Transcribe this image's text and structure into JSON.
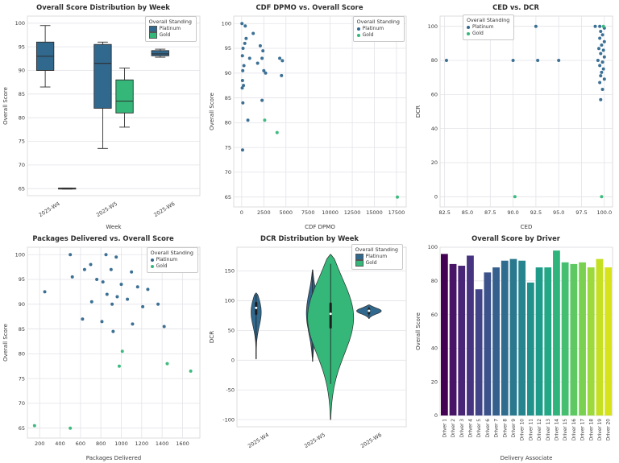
{
  "colors": {
    "platinum": "#31688e",
    "gold": "#35b779",
    "grid": "#e3e3e9",
    "axis_text": "#3a3a3a",
    "border": "#d6d6d6",
    "box_edge": "#2e2e2e"
  },
  "legend_title": "Overall Standing",
  "chart_data": [
    {
      "id": "box-week",
      "type": "box",
      "title": "Overall Score Distribution by Week",
      "xlabel": "Week",
      "ylabel": "Overall Score",
      "categories": [
        "2025-W4",
        "2025-W5",
        "2025-W6"
      ],
      "ylim": [
        63.5,
        101.5
      ],
      "yticks": [
        65,
        70,
        75,
        80,
        85,
        90,
        95,
        100
      ],
      "rot_xticks": true,
      "legend": {
        "title": "Overall Standing",
        "marker": "square",
        "pos": {
          "right": 12,
          "top": 20
        },
        "entries": [
          {
            "label": "Platinum",
            "color_key": "platinum"
          },
          {
            "label": "Gold",
            "color_key": "gold"
          }
        ]
      },
      "boxes": [
        {
          "cat": 0,
          "group": "platinum",
          "lo": 86.5,
          "q1": 90,
          "med": 93,
          "q3": 96,
          "hi": 99.5
        },
        {
          "cat": 0,
          "group": "gold",
          "lo": 64.9,
          "q1": 64.9,
          "med": 65,
          "q3": 65.1,
          "hi": 65.1
        },
        {
          "cat": 1,
          "group": "platinum",
          "lo": 73.5,
          "q1": 82,
          "med": 91.5,
          "q3": 95.5,
          "hi": 96
        },
        {
          "cat": 1,
          "group": "gold",
          "lo": 78,
          "q1": 81,
          "med": 83.5,
          "q3": 88,
          "hi": 90.5
        },
        {
          "cat": 2,
          "group": "platinum",
          "lo": 92.8,
          "q1": 93.1,
          "med": 93.5,
          "q3": 94.2,
          "hi": 94.5
        }
      ]
    },
    {
      "id": "dpmo-score",
      "type": "scatter",
      "title": "CDF DPMO vs. Overall Score",
      "xlabel": "CDF DPMO",
      "ylabel": "Overall Score",
      "xlim": [
        -900,
        18600
      ],
      "xticks": [
        0,
        2500,
        5000,
        7500,
        10000,
        12500,
        15000,
        17500
      ],
      "ylim": [
        63,
        101.5
      ],
      "yticks": [
        65,
        70,
        75,
        80,
        85,
        90,
        95,
        100
      ],
      "legend": {
        "title": "Overall Standing",
        "marker": "dot",
        "pos": {
          "right": 10,
          "top": 20
        },
        "entries": [
          {
            "label": "Platinum",
            "color_key": "platinum"
          },
          {
            "label": "Gold",
            "color_key": "gold"
          }
        ]
      },
      "series": [
        {
          "name": "Platinum",
          "color_key": "platinum",
          "points": [
            [
              30,
              100
            ],
            [
              400,
              99.5
            ],
            [
              1300,
              98
            ],
            [
              500,
              97
            ],
            [
              350,
              96
            ],
            [
              2100,
              95.5
            ],
            [
              150,
              95
            ],
            [
              2400,
              94.5
            ],
            [
              80,
              93.5
            ],
            [
              900,
              93
            ],
            [
              2300,
              93
            ],
            [
              4300,
              93
            ],
            [
              1800,
              92
            ],
            [
              4600,
              92.5
            ],
            [
              250,
              91.5
            ],
            [
              120,
              90.5
            ],
            [
              2500,
              90.5
            ],
            [
              2700,
              90
            ],
            [
              4500,
              89.5
            ],
            [
              90,
              88.5
            ],
            [
              200,
              87.5
            ],
            [
              60,
              87
            ],
            [
              2300,
              84.5
            ],
            [
              130,
              84
            ],
            [
              700,
              80.5
            ],
            [
              100,
              74.5
            ]
          ]
        },
        {
          "name": "Gold",
          "color_key": "gold",
          "points": [
            [
              2600,
              80.5
            ],
            [
              4000,
              78
            ],
            [
              17600,
              65
            ]
          ]
        }
      ]
    },
    {
      "id": "ced-dcr",
      "type": "scatter",
      "title": "CED vs. DCR",
      "xlabel": "CED",
      "ylabel": "DCR",
      "xlim": [
        82.0,
        100.9
      ],
      "xticks": [
        82.5,
        85.0,
        87.5,
        90.0,
        92.5,
        95.0,
        97.5,
        100.0
      ],
      "xtick_labels": [
        "82.5",
        "85.0",
        "87.5",
        "90.0",
        "92.5",
        "95.0",
        "97.5",
        "100.0"
      ],
      "ylim": [
        -6,
        106
      ],
      "yticks": [
        0,
        20,
        40,
        60,
        80,
        100
      ],
      "legend": {
        "title": "Overall Standing",
        "marker": "dot",
        "pos": {
          "left": 62,
          "top": 18
        },
        "entries": [
          {
            "label": "Platinum",
            "color_key": "platinum"
          },
          {
            "label": "Gold",
            "color_key": "gold"
          }
        ]
      },
      "series": [
        {
          "name": "Platinum",
          "color_key": "platinum",
          "points": [
            [
              82.7,
              80
            ],
            [
              90.0,
              80
            ],
            [
              92.5,
              100
            ],
            [
              92.7,
              80
            ],
            [
              95.0,
              80
            ],
            [
              99.0,
              100
            ],
            [
              99.5,
              100
            ],
            [
              100,
              99
            ],
            [
              99.6,
              97
            ],
            [
              99.8,
              95
            ],
            [
              99.5,
              93
            ],
            [
              100,
              91
            ],
            [
              99.7,
              89
            ],
            [
              99.4,
              87
            ],
            [
              99.9,
              86
            ],
            [
              99.6,
              84
            ],
            [
              100,
              82
            ],
            [
              99.3,
              80
            ],
            [
              99.8,
              79
            ],
            [
              99.5,
              77
            ],
            [
              99.9,
              75
            ],
            [
              99.7,
              73
            ],
            [
              99.6,
              71
            ],
            [
              100,
              69
            ],
            [
              99.5,
              67
            ],
            [
              99.8,
              63
            ],
            [
              99.6,
              57
            ]
          ]
        },
        {
          "name": "Gold",
          "color_key": "gold",
          "points": [
            [
              90.2,
              0
            ],
            [
              99.7,
              0
            ],
            [
              99.9,
              100
            ]
          ]
        }
      ]
    },
    {
      "id": "packages-score",
      "type": "scatter",
      "title": "Packages Delivered vs. Overall Score",
      "xlabel": "Packages Delivered",
      "ylabel": "Overall Score",
      "xlim": [
        80,
        1770
      ],
      "xticks": [
        200,
        400,
        600,
        800,
        1000,
        1200,
        1400,
        1600
      ],
      "ylim": [
        63,
        101.5
      ],
      "yticks": [
        65,
        70,
        75,
        80,
        85,
        90,
        95,
        100
      ],
      "legend": {
        "title": "Overall Standing",
        "marker": "dot",
        "pos": {
          "right": 10,
          "top": 20
        },
        "entries": [
          {
            "label": "Platinum",
            "color_key": "platinum"
          },
          {
            "label": "Gold",
            "color_key": "gold"
          }
        ]
      },
      "series": [
        {
          "name": "Platinum",
          "color_key": "platinum",
          "points": [
            [
              500,
              100
            ],
            [
              850,
              100
            ],
            [
              950,
              99.5
            ],
            [
              700,
              98
            ],
            [
              640,
              97
            ],
            [
              900,
              97
            ],
            [
              1100,
              96.5
            ],
            [
              520,
              95.5
            ],
            [
              760,
              95
            ],
            [
              820,
              94.5
            ],
            [
              1000,
              94
            ],
            [
              1160,
              93.5
            ],
            [
              250,
              92.5
            ],
            [
              860,
              92
            ],
            [
              960,
              91.5
            ],
            [
              1060,
              91
            ],
            [
              710,
              90.5
            ],
            [
              910,
              90
            ],
            [
              1260,
              93
            ],
            [
              1210,
              89.5
            ],
            [
              1360,
              90
            ],
            [
              620,
              87
            ],
            [
              810,
              86.5
            ],
            [
              1110,
              86
            ],
            [
              920,
              84.5
            ],
            [
              1420,
              85.5
            ]
          ]
        },
        {
          "name": "Gold",
          "color_key": "gold",
          "points": [
            [
              150,
              65.5
            ],
            [
              500,
              65
            ],
            [
              980,
              77.5
            ],
            [
              1010,
              80.5
            ],
            [
              1450,
              78
            ],
            [
              1680,
              76.5
            ]
          ]
        }
      ]
    },
    {
      "id": "dcr-violin",
      "type": "violin",
      "title": "DCR Distribution by Week",
      "xlabel": "",
      "ylabel": "DCR",
      "categories": [
        "2025-W4",
        "2025-W5",
        "2025-W6"
      ],
      "ylim": [
        -112,
        190
      ],
      "yticks": [
        -100,
        -50,
        0,
        50,
        100,
        150
      ],
      "rot_xticks": true,
      "legend": {
        "title": "Overall Standing",
        "marker": "square",
        "pos": {
          "right": 12,
          "top": 16
        },
        "entries": [
          {
            "label": "Platinum",
            "color_key": "platinum"
          },
          {
            "label": "Gold",
            "color_key": "gold"
          }
        ]
      },
      "violins": [
        {
          "cat": 0,
          "group": "platinum",
          "lo": 2,
          "hi": 113,
          "peak": 86,
          "halfw": 0.1,
          "whisk": [
            3,
            110
          ],
          "box": {
            "q1": 78,
            "q3": 96,
            "med": 88
          }
        },
        {
          "cat": 1,
          "group": "platinum",
          "lo": -2,
          "hi": 152,
          "peak": 80,
          "halfw": 0.11,
          "whisk": [
            5,
            148
          ],
          "box": {
            "q1": 62,
            "q3": 92,
            "med": 76
          }
        },
        {
          "cat": 1,
          "group": "gold",
          "lo": -100,
          "hi": 178,
          "peak": 78,
          "halfw": 0.42,
          "whisk": [
            -40,
            162
          ],
          "box": {
            "q1": 55,
            "q3": 95,
            "med": 78
          }
        },
        {
          "cat": 2,
          "group": "platinum",
          "lo": 70,
          "hi": 93,
          "peak": 83,
          "halfw": 0.22,
          "whisk": [
            74,
            90
          ],
          "box": {
            "q1": 79,
            "q3": 86,
            "med": 83
          }
        }
      ]
    },
    {
      "id": "score-by-driver",
      "type": "bar",
      "title": "Overall Score by Driver",
      "xlabel": "Delivery Associate",
      "ylabel": "Overall Score",
      "categories": [
        "Driver 1",
        "Driver 2",
        "Driver 3",
        "Driver 4",
        "Driver 5",
        "Driver 6",
        "Driver 7",
        "Driver 8",
        "Driver 9",
        "Driver 10",
        "Driver 11",
        "Driver 12",
        "Driver 13",
        "Driver 14",
        "Driver 15",
        "Driver 16",
        "Driver 17",
        "Driver 18",
        "Driver 19",
        "Driver 20"
      ],
      "values": [
        96,
        90,
        89,
        95,
        75,
        85,
        88,
        92,
        93,
        92,
        79,
        88,
        88,
        98,
        91,
        90,
        91,
        88,
        93,
        88
      ],
      "bar_colors": [
        "#440154",
        "#481467",
        "#482576",
        "#463480",
        "#414487",
        "#3b528b",
        "#355f8d",
        "#2f6c8e",
        "#2a788e",
        "#25848e",
        "#21918c",
        "#1e9c89",
        "#22a884",
        "#2fb47c",
        "#44bf70",
        "#5ec962",
        "#7ad151",
        "#9bd93c",
        "#c5e021",
        "#d8e219"
      ],
      "ylim": [
        0,
        100
      ],
      "yticks": [
        0,
        20,
        40,
        60,
        80,
        100
      ],
      "vert_xticks": true
    }
  ]
}
